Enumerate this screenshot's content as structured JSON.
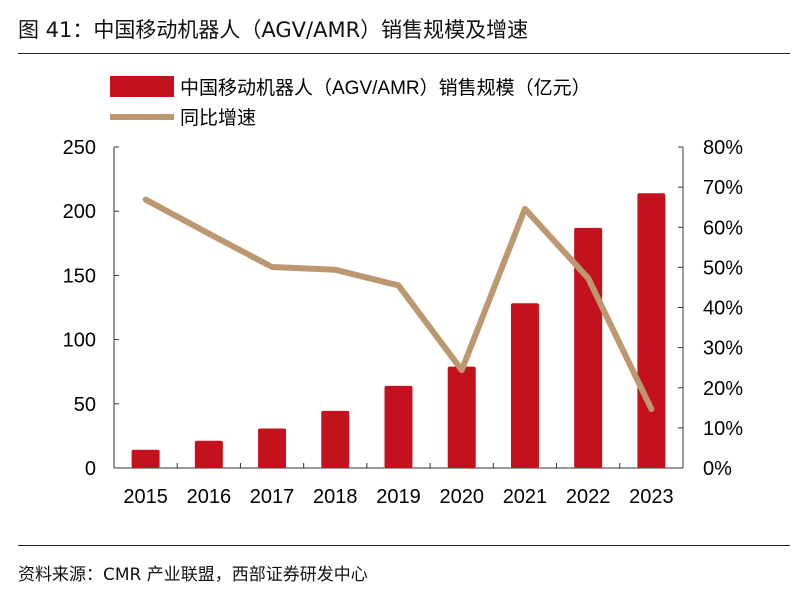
{
  "figure_title": "图 41：中国移动机器人（AGV/AMR）销售规模及增速",
  "source": "资料来源：CMR 产业联盟，西部证券研发中心",
  "chart_data": {
    "type": "bar+line",
    "categories": [
      "2015",
      "2016",
      "2017",
      "2018",
      "2019",
      "2020",
      "2021",
      "2022",
      "2023"
    ],
    "series": [
      {
        "name": "中国移动机器人（AGV/AMR）销售规模（亿元）",
        "type": "bar",
        "axis": "left",
        "color": "#C4111E",
        "values": [
          14.2,
          21.2,
          30.8,
          44.5,
          64,
          79,
          128.3,
          187,
          214
        ]
      },
      {
        "name": "同比增速",
        "type": "line",
        "axis": "right",
        "color": "#BD9770",
        "values": [
          66.9,
          58.4,
          50.1,
          49.4,
          45.5,
          24.4,
          64.6,
          47.3,
          14.7
        ]
      }
    ],
    "left_axis": {
      "ylim": [
        0,
        250
      ],
      "ticks": [
        "0",
        "50",
        "100",
        "150",
        "200",
        "250"
      ]
    },
    "right_axis": {
      "ylim": [
        0,
        80
      ],
      "ticks": [
        "0%",
        "10%",
        "20%",
        "30%",
        "40%",
        "50%",
        "60%",
        "70%",
        "80%"
      ]
    },
    "legend_placement": "top-left",
    "grid": false
  }
}
